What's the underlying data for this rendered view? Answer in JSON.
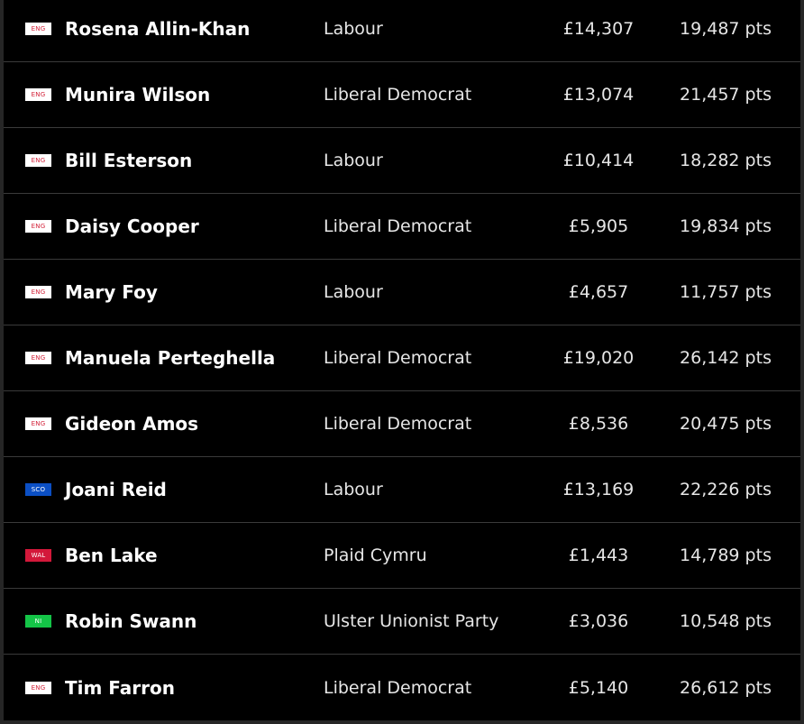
{
  "rows": [
    {
      "region": "ENG",
      "name": "Rosena Allin-Khan",
      "party": "Labour",
      "money": "£14,307",
      "points": "19,487 pts"
    },
    {
      "region": "ENG",
      "name": "Munira Wilson",
      "party": "Liberal Democrat",
      "money": "£13,074",
      "points": "21,457 pts"
    },
    {
      "region": "ENG",
      "name": "Bill Esterson",
      "party": "Labour",
      "money": "£10,414",
      "points": "18,282 pts"
    },
    {
      "region": "ENG",
      "name": "Daisy Cooper",
      "party": "Liberal Democrat",
      "money": "£5,905",
      "points": "19,834 pts"
    },
    {
      "region": "ENG",
      "name": "Mary Foy",
      "party": "Labour",
      "money": "£4,657",
      "points": "11,757 pts"
    },
    {
      "region": "ENG",
      "name": "Manuela Perteghella",
      "party": "Liberal Democrat",
      "money": "£19,020",
      "points": "26,142 pts"
    },
    {
      "region": "ENG",
      "name": "Gideon Amos",
      "party": "Liberal Democrat",
      "money": "£8,536",
      "points": "20,475 pts"
    },
    {
      "region": "SCO",
      "name": "Joani Reid",
      "party": "Labour",
      "money": "£13,169",
      "points": "22,226 pts"
    },
    {
      "region": "WAL",
      "name": "Ben Lake",
      "party": "Plaid Cymru",
      "money": "£1,443",
      "points": "14,789 pts"
    },
    {
      "region": "NI",
      "name": "Robin Swann",
      "party": "Ulster Unionist Party",
      "money": "£3,036",
      "points": "10,548 pts"
    },
    {
      "region": "ENG",
      "name": "Tim Farron",
      "party": "Liberal Democrat",
      "money": "£5,140",
      "points": "26,612 pts"
    }
  ],
  "region_colors": {
    "ENG": "#ffffff",
    "SCO": "#0b4fc4",
    "WAL": "#d3183a",
    "NI": "#14c447"
  }
}
